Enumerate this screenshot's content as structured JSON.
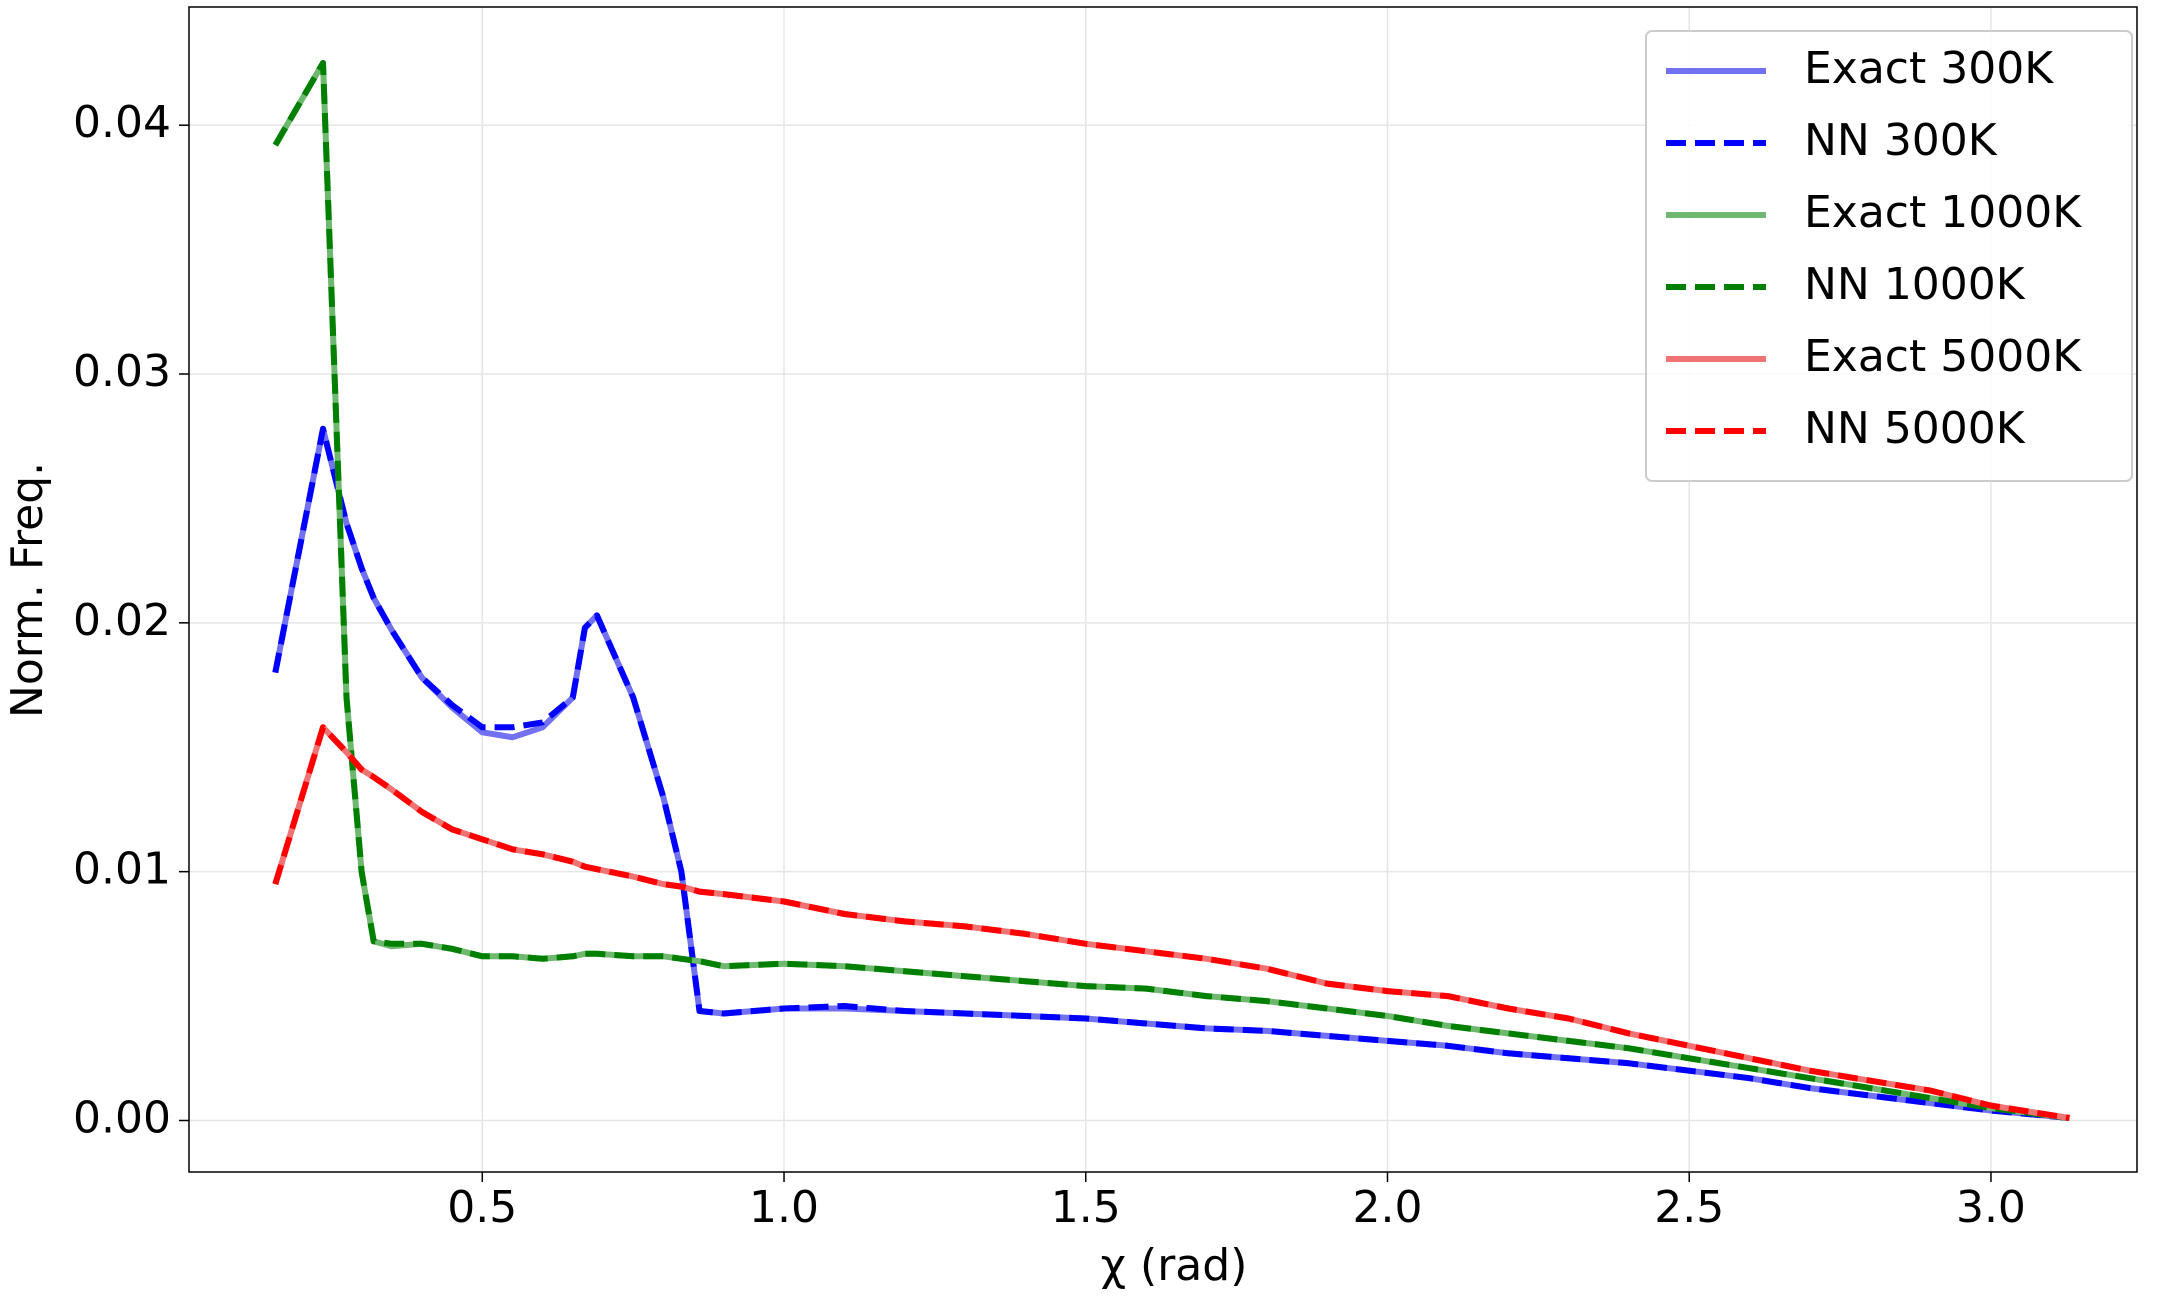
{
  "chart_data": {
    "type": "line",
    "xlabel": "χ (rad)",
    "ylabel": "Norm. Freq.",
    "x": [
      0.157,
      0.236,
      0.275,
      0.3,
      0.32,
      0.35,
      0.4,
      0.45,
      0.5,
      0.55,
      0.6,
      0.65,
      0.67,
      0.69,
      0.75,
      0.8,
      0.83,
      0.86,
      0.9,
      1.0,
      1.1,
      1.2,
      1.3,
      1.4,
      1.5,
      1.6,
      1.7,
      1.8,
      1.9,
      2.0,
      2.1,
      2.2,
      2.3,
      2.4,
      2.5,
      2.6,
      2.7,
      2.8,
      2.9,
      3.0,
      3.13
    ],
    "series": [
      {
        "name": "Exact 300K",
        "color": "#7171f1",
        "linestyle": "solid",
        "values": [
          0.018,
          0.0278,
          0.024,
          0.0222,
          0.021,
          0.0197,
          0.0178,
          0.0166,
          0.0156,
          0.0154,
          0.0158,
          0.017,
          0.0198,
          0.0203,
          0.017,
          0.013,
          0.01,
          0.0044,
          0.0043,
          0.0045,
          0.0045,
          0.0044,
          0.0043,
          0.0042,
          0.0041,
          0.0039,
          0.0037,
          0.0036,
          0.0034,
          0.0032,
          0.003,
          0.0027,
          0.0025,
          0.0023,
          0.002,
          0.0017,
          0.0013,
          0.001,
          0.0007,
          0.0004,
          0.0001
        ]
      },
      {
        "name": "NN 300K",
        "color": "#0000ff",
        "linestyle": "dashed",
        "values": [
          0.018,
          0.0278,
          0.024,
          0.0222,
          0.021,
          0.0197,
          0.0178,
          0.0167,
          0.0158,
          0.0158,
          0.016,
          0.017,
          0.0198,
          0.0203,
          0.017,
          0.013,
          0.01,
          0.0044,
          0.0043,
          0.0045,
          0.0046,
          0.0044,
          0.0043,
          0.0042,
          0.0041,
          0.0039,
          0.0037,
          0.0036,
          0.0034,
          0.0032,
          0.003,
          0.0027,
          0.0025,
          0.0023,
          0.002,
          0.0017,
          0.0013,
          0.001,
          0.0007,
          0.0004,
          0.0001
        ]
      },
      {
        "name": "Exact 1000K",
        "color": "#6fb86f",
        "linestyle": "solid",
        "values": [
          0.0392,
          0.0425,
          0.017,
          0.01,
          0.0072,
          0.007,
          0.0071,
          0.0069,
          0.0066,
          0.0066,
          0.0065,
          0.0066,
          0.0067,
          0.0067,
          0.0066,
          0.0066,
          0.0065,
          0.0064,
          0.0062,
          0.0063,
          0.0062,
          0.006,
          0.0058,
          0.0056,
          0.0054,
          0.0053,
          0.005,
          0.0048,
          0.0045,
          0.0042,
          0.0038,
          0.0035,
          0.0032,
          0.0029,
          0.0025,
          0.0021,
          0.0017,
          0.0013,
          0.0009,
          0.0005,
          0.0001
        ]
      },
      {
        "name": "NN 1000K",
        "color": "#007f00",
        "linestyle": "dashed",
        "values": [
          0.0392,
          0.0425,
          0.017,
          0.01,
          0.0072,
          0.0071,
          0.0071,
          0.0069,
          0.0066,
          0.0066,
          0.0065,
          0.0066,
          0.0067,
          0.0067,
          0.0066,
          0.0066,
          0.0065,
          0.0064,
          0.0062,
          0.0063,
          0.0062,
          0.006,
          0.0058,
          0.0056,
          0.0054,
          0.0053,
          0.005,
          0.0048,
          0.0045,
          0.0042,
          0.0038,
          0.0035,
          0.0032,
          0.0029,
          0.0025,
          0.0021,
          0.0017,
          0.0013,
          0.0009,
          0.0005,
          0.0001
        ]
      },
      {
        "name": "Exact 5000K",
        "color": "#f07373",
        "linestyle": "solid",
        "values": [
          0.0095,
          0.0158,
          0.0148,
          0.0141,
          0.0138,
          0.0133,
          0.0124,
          0.0117,
          0.0113,
          0.0109,
          0.0107,
          0.0104,
          0.0102,
          0.0101,
          0.0098,
          0.0095,
          0.0094,
          0.0092,
          0.0091,
          0.0088,
          0.0083,
          0.008,
          0.0078,
          0.0075,
          0.0071,
          0.0068,
          0.0065,
          0.0061,
          0.0055,
          0.0052,
          0.005,
          0.0045,
          0.0041,
          0.0035,
          0.003,
          0.0025,
          0.002,
          0.0016,
          0.0012,
          0.0006,
          0.0001
        ]
      },
      {
        "name": "NN 5000K",
        "color": "#ff0000",
        "linestyle": "dashed",
        "values": [
          0.0095,
          0.0158,
          0.0148,
          0.0141,
          0.0138,
          0.0133,
          0.0124,
          0.0117,
          0.0113,
          0.0109,
          0.0107,
          0.0104,
          0.0102,
          0.0101,
          0.0098,
          0.0095,
          0.0094,
          0.0092,
          0.0091,
          0.0088,
          0.0083,
          0.008,
          0.0078,
          0.0075,
          0.0071,
          0.0068,
          0.0065,
          0.0061,
          0.0055,
          0.0052,
          0.005,
          0.0045,
          0.0041,
          0.0035,
          0.003,
          0.0025,
          0.002,
          0.0016,
          0.0012,
          0.0006,
          0.0001
        ]
      }
    ],
    "xlim": [
      0.014,
      3.242
    ],
    "xticks": [
      0.5,
      {
        "value": 1,
        "label": "1.0"
      },
      1.5,
      {
        "value": 2,
        "label": "2.0"
      },
      2.5,
      {
        "value": 3,
        "label": "3.0"
      }
    ],
    "ylim": [
      -0.00207,
      0.04475
    ],
    "yticks": [
      {
        "value": 0,
        "label": "0.00"
      },
      0.01,
      0.02,
      0.03,
      0.04
    ],
    "grid": true,
    "legend": "upper right"
  }
}
